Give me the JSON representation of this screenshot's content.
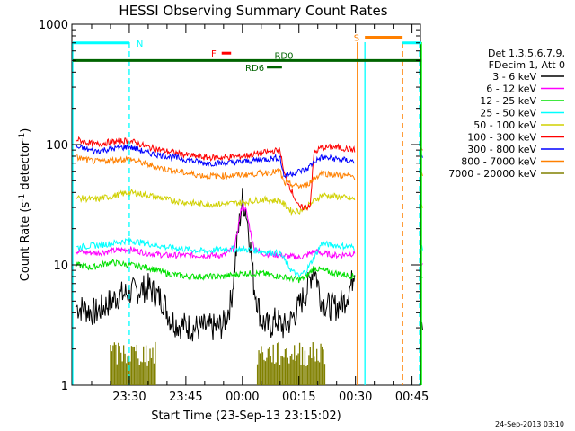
{
  "chart_data": {
    "type": "line",
    "title": "HESSI Observing Summary Count Rates",
    "xlabel": "Start Time (23-Sep-13 23:15:02)",
    "ylabel": "Count Rate (s⁻¹ detector⁻¹)",
    "ylabel_parts": {
      "main": "Count Rate (s",
      "exp1": "-1",
      "mid": " detector",
      "exp2": "-1",
      "end": ")"
    },
    "y_scale": "log",
    "ylim": [
      1,
      1000
    ],
    "xlim_minutes_after_start": [
      0,
      92
    ],
    "start_time": "23:15:02",
    "x_ticks": [
      {
        "label": "23:30",
        "t": 15
      },
      {
        "label": "23:45",
        "t": 30
      },
      {
        "label": "00:00",
        "t": 45
      },
      {
        "label": "00:15",
        "t": 60
      },
      {
        "label": "00:30",
        "t": 75
      },
      {
        "label": "00:45",
        "t": 90
      }
    ],
    "y_ticks": [
      {
        "label": "1",
        "v": 1
      },
      {
        "label": "10",
        "v": 10
      },
      {
        "label": "100",
        "v": 100
      },
      {
        "label": "1000",
        "v": 1000
      }
    ],
    "legend_header": [
      "Det 1,3,5,6,7,9,",
      "FDecim 1, Att 0"
    ],
    "legend_position": "right",
    "series": [
      {
        "name": "3 - 6 keV",
        "color": "#000000",
        "points": [
          [
            1,
            4.5
          ],
          [
            6,
            4
          ],
          [
            12,
            5.5
          ],
          [
            16,
            6
          ],
          [
            20,
            6.5
          ],
          [
            24,
            5
          ],
          [
            26,
            3.5
          ],
          [
            28,
            3.2
          ],
          [
            32,
            3
          ],
          [
            36,
            3
          ],
          [
            38,
            3
          ],
          [
            40,
            3.2
          ],
          [
            42,
            5
          ],
          [
            44,
            20
          ],
          [
            45,
            35
          ],
          [
            46,
            28
          ],
          [
            47,
            16
          ],
          [
            48,
            7
          ],
          [
            50,
            3.5
          ],
          [
            52,
            3
          ],
          [
            54,
            3.5
          ],
          [
            56,
            3
          ],
          [
            58,
            3.5
          ],
          [
            60,
            4.5
          ],
          [
            62,
            6
          ],
          [
            64,
            10
          ],
          [
            66,
            5
          ],
          [
            68,
            4.5
          ],
          [
            70,
            4.5
          ],
          [
            72,
            5
          ],
          [
            74,
            7
          ],
          [
            75,
            11
          ],
          [
            75.3,
            null
          ],
          [
            92.3,
            3.8
          ],
          [
            93,
            3.5
          ]
        ]
      },
      {
        "name": "6 - 12 keV",
        "color": "#ff00ff",
        "points": [
          [
            1,
            13
          ],
          [
            6,
            12.5
          ],
          [
            10,
            13
          ],
          [
            15,
            13.5
          ],
          [
            20,
            12.5
          ],
          [
            25,
            12
          ],
          [
            30,
            12
          ],
          [
            35,
            12
          ],
          [
            40,
            12
          ],
          [
            43,
            14
          ],
          [
            44,
            22
          ],
          [
            45,
            32
          ],
          [
            46,
            28
          ],
          [
            47,
            20
          ],
          [
            48,
            14
          ],
          [
            50,
            12.5
          ],
          [
            55,
            12
          ],
          [
            60,
            11.5
          ],
          [
            62,
            12
          ],
          [
            64,
            13
          ],
          [
            66,
            12.5
          ],
          [
            70,
            12
          ],
          [
            75,
            12.5
          ],
          [
            75.3,
            null
          ],
          [
            92.3,
            10
          ],
          [
            93,
            10
          ]
        ]
      },
      {
        "name": "12 - 25 keV",
        "color": "#00e000",
        "points": [
          [
            1,
            10
          ],
          [
            5,
            9.5
          ],
          [
            10,
            10.5
          ],
          [
            15,
            10
          ],
          [
            20,
            9.5
          ],
          [
            25,
            8.5
          ],
          [
            30,
            8
          ],
          [
            35,
            8
          ],
          [
            40,
            8
          ],
          [
            45,
            8.5
          ],
          [
            50,
            8.5
          ],
          [
            55,
            8
          ],
          [
            60,
            7.5
          ],
          [
            62,
            8
          ],
          [
            64,
            9.5
          ],
          [
            66,
            9
          ],
          [
            70,
            8.5
          ],
          [
            75,
            8
          ],
          [
            75.3,
            null
          ],
          [
            92.3,
            8
          ],
          [
            93,
            8
          ]
        ]
      },
      {
        "name": "25 - 50 keV",
        "color": "#00ffff",
        "points": [
          [
            1,
            14
          ],
          [
            6,
            14.5
          ],
          [
            10,
            15
          ],
          [
            15,
            16
          ],
          [
            20,
            15
          ],
          [
            25,
            14
          ],
          [
            30,
            13.5
          ],
          [
            35,
            13
          ],
          [
            40,
            13.5
          ],
          [
            45,
            13.5
          ],
          [
            50,
            13
          ],
          [
            55,
            12.5
          ],
          [
            58,
            9
          ],
          [
            60,
            8
          ],
          [
            62,
            9
          ],
          [
            64,
            11.5
          ],
          [
            66,
            15
          ],
          [
            70,
            14.5
          ],
          [
            75,
            14
          ],
          [
            75.3,
            null
          ],
          [
            92.3,
            14
          ],
          [
            93,
            14
          ]
        ]
      },
      {
        "name": "50 - 100 keV",
        "color": "#d0d000",
        "points": [
          [
            1,
            36
          ],
          [
            6,
            35
          ],
          [
            10,
            37
          ],
          [
            15,
            40
          ],
          [
            20,
            38
          ],
          [
            25,
            35
          ],
          [
            30,
            33
          ],
          [
            35,
            32
          ],
          [
            40,
            32
          ],
          [
            45,
            33
          ],
          [
            50,
            35
          ],
          [
            55,
            34
          ],
          [
            58,
            28
          ],
          [
            60,
            28
          ],
          [
            62,
            30
          ],
          [
            64,
            34
          ],
          [
            66,
            38
          ],
          [
            70,
            37
          ],
          [
            75,
            35
          ],
          [
            75.3,
            null
          ],
          [
            92.3,
            30
          ],
          [
            93,
            30
          ]
        ]
      },
      {
        "name": "100 - 300 keV",
        "color": "#ff0000",
        "points": [
          [
            1,
            110
          ],
          [
            6,
            100
          ],
          [
            10,
            105
          ],
          [
            15,
            108
          ],
          [
            20,
            95
          ],
          [
            25,
            88
          ],
          [
            30,
            82
          ],
          [
            35,
            78
          ],
          [
            40,
            78
          ],
          [
            45,
            80
          ],
          [
            50,
            85
          ],
          [
            55,
            90
          ],
          [
            56,
            58
          ],
          [
            60,
            30
          ],
          [
            62,
            30
          ],
          [
            63,
            32
          ],
          [
            64,
            85
          ],
          [
            66,
            95
          ],
          [
            70,
            95
          ],
          [
            75,
            90
          ],
          [
            75.3,
            null
          ],
          [
            92.3,
            95
          ],
          [
            93,
            88
          ]
        ]
      },
      {
        "name": "300 - 800 keV",
        "color": "#0000ff",
        "points": [
          [
            1,
            95
          ],
          [
            6,
            88
          ],
          [
            10,
            92
          ],
          [
            15,
            96
          ],
          [
            20,
            85
          ],
          [
            25,
            80
          ],
          [
            30,
            75
          ],
          [
            35,
            70
          ],
          [
            40,
            70
          ],
          [
            45,
            72
          ],
          [
            50,
            75
          ],
          [
            55,
            78
          ],
          [
            56,
            55
          ],
          [
            60,
            60
          ],
          [
            62,
            62
          ],
          [
            64,
            72
          ],
          [
            66,
            78
          ],
          [
            70,
            76
          ],
          [
            75,
            72
          ],
          [
            75.3,
            null
          ],
          [
            92.3,
            80
          ],
          [
            93,
            75
          ]
        ]
      },
      {
        "name": "800 - 7000 keV",
        "color": "#ff8000",
        "points": [
          [
            1,
            78
          ],
          [
            6,
            72
          ],
          [
            10,
            74
          ],
          [
            15,
            76
          ],
          [
            20,
            68
          ],
          [
            25,
            62
          ],
          [
            30,
            58
          ],
          [
            35,
            55
          ],
          [
            40,
            55
          ],
          [
            45,
            56
          ],
          [
            50,
            58
          ],
          [
            55,
            60
          ],
          [
            56,
            48
          ],
          [
            60,
            45
          ],
          [
            62,
            46
          ],
          [
            64,
            52
          ],
          [
            66,
            58
          ],
          [
            70,
            56
          ],
          [
            75,
            54
          ],
          [
            75.3,
            null
          ],
          [
            92.3,
            60
          ],
          [
            93,
            55
          ]
        ]
      },
      {
        "name": "7000 - 20000 keV",
        "color": "#808000",
        "fill": true,
        "points": [
          [
            10,
            1
          ],
          [
            10,
            2.3
          ],
          [
            22,
            2.3
          ],
          [
            22,
            1
          ]
        ],
        "points2": [
          [
            49,
            1
          ],
          [
            49,
            2.3
          ],
          [
            67,
            2.3
          ],
          [
            67,
            1
          ]
        ]
      }
    ],
    "annotations": [
      {
        "label": "N",
        "color": "#00ffff",
        "t0": 0,
        "t1": 15,
        "v": 700
      },
      {
        "label": "F",
        "color": "#ff0000",
        "t0": 39.5,
        "t1": 42,
        "v": 575
      },
      {
        "label": "RD0",
        "color": "#006400",
        "t0": 0,
        "t1": 92.5,
        "v": 500
      },
      {
        "label": "RD6",
        "color": "#006400",
        "t0": 51.5,
        "t1": 55.5,
        "v": 440
      },
      {
        "label": "S",
        "color": "#ff8000",
        "t0": 77.5,
        "t1": 87.5,
        "v": 780
      },
      {
        "label": "",
        "color": "#00ffff",
        "t0": 87.5,
        "t1": 92.5,
        "v": 700
      }
    ],
    "vlines": [
      {
        "t": 0,
        "color": "#00ffff",
        "dash": false
      },
      {
        "t": 15,
        "color": "#00ffff",
        "dash": true
      },
      {
        "t": 75.5,
        "color": "#ff8000",
        "dash": false
      },
      {
        "t": 77.5,
        "color": "#00ffff",
        "dash": false
      },
      {
        "t": 87.5,
        "color": "#ff8000",
        "dash": true
      },
      {
        "t": 92,
        "color": "#00ffff",
        "dash": true
      },
      {
        "t": 92.5,
        "color": "#00ff00",
        "dash": false
      }
    ],
    "footer": "24-Sep-2013 03:10",
    "grid": false
  }
}
